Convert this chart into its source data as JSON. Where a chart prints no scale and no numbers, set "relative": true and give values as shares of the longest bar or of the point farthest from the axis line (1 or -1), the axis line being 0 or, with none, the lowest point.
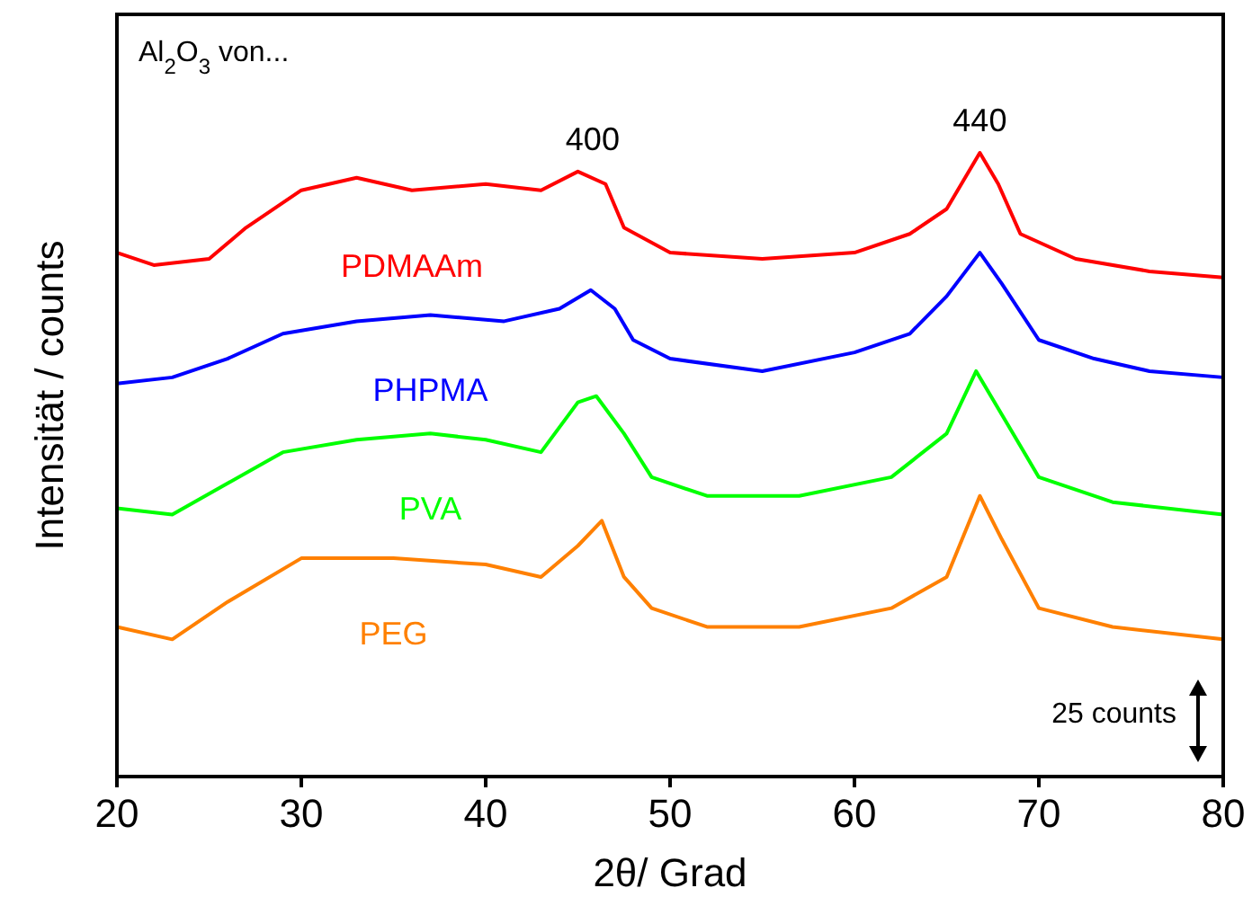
{
  "chart_data": {
    "type": "line",
    "relative": true,
    "xlabel": "2θ/ Grad",
    "ylabel": "Intensität / counts",
    "xlim": [
      20,
      80
    ],
    "xticks": [
      20,
      30,
      40,
      50,
      60,
      70,
      80
    ],
    "grid": false,
    "marker": "none",
    "line_style": "solid",
    "series": [
      {
        "name": "PDMAAm",
        "color": "#ff0000",
        "x": [
          20,
          22,
          25,
          27,
          30,
          33,
          36,
          40,
          43,
          45,
          46.5,
          47.5,
          50,
          55,
          60,
          63,
          65,
          66.8,
          67.8,
          69,
          72,
          76,
          80
        ],
        "values": [
          0.84,
          0.82,
          0.83,
          0.88,
          0.94,
          0.96,
          0.94,
          0.95,
          0.94,
          0.97,
          0.95,
          0.88,
          0.84,
          0.83,
          0.84,
          0.87,
          0.91,
          1,
          0.95,
          0.87,
          0.83,
          0.81,
          0.8
        ]
      },
      {
        "name": "PHPMA",
        "color": "#0000ff",
        "x": [
          20,
          23,
          26,
          29,
          33,
          37,
          41,
          44,
          45.7,
          47,
          48,
          50,
          55,
          60,
          63,
          65,
          66.8,
          68,
          70,
          73,
          76,
          80
        ],
        "values": [
          0.63,
          0.64,
          0.67,
          0.71,
          0.73,
          0.74,
          0.73,
          0.75,
          0.78,
          0.75,
          0.7,
          0.67,
          0.65,
          0.68,
          0.71,
          0.77,
          0.84,
          0.79,
          0.7,
          0.67,
          0.65,
          0.64
        ]
      },
      {
        "name": "PVA",
        "color": "#00ff00",
        "x": [
          20,
          23,
          26,
          29,
          33,
          37,
          40,
          43,
          45,
          46,
          47.5,
          49,
          52,
          57,
          62,
          65,
          66.6,
          68,
          70,
          74,
          80
        ],
        "values": [
          0.43,
          0.42,
          0.47,
          0.52,
          0.54,
          0.55,
          0.54,
          0.52,
          0.6,
          0.61,
          0.55,
          0.48,
          0.45,
          0.45,
          0.48,
          0.55,
          0.65,
          0.58,
          0.48,
          0.44,
          0.42
        ]
      },
      {
        "name": "PEG",
        "color": "#ff8000",
        "x": [
          20,
          23,
          26,
          30,
          35,
          40,
          43,
          45,
          46.3,
          47.5,
          49,
          52,
          57,
          62,
          65,
          66.8,
          68,
          70,
          74,
          80
        ],
        "values": [
          0.24,
          0.22,
          0.28,
          0.35,
          0.35,
          0.34,
          0.32,
          0.37,
          0.41,
          0.32,
          0.27,
          0.24,
          0.24,
          0.27,
          0.32,
          0.45,
          0.38,
          0.27,
          0.24,
          0.22
        ]
      }
    ],
    "annotations": [
      {
        "text": "400",
        "x": 45.8,
        "y": 0.97
      },
      {
        "text": "440",
        "x": 66.8,
        "y": 1
      },
      "Al$_{2}$O$_{3}$ von...",
      "25 counts"
    ]
  }
}
